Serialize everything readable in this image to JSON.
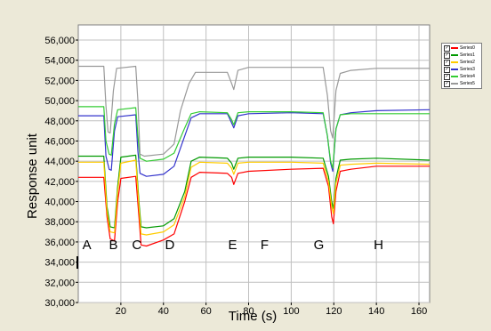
{
  "chart_data": {
    "type": "line",
    "xlabel": "Time (s)",
    "ylabel": "Response unit",
    "xlim": [
      0,
      165
    ],
    "ylim": [
      30000,
      57500
    ],
    "x_ticks": [
      20,
      40,
      60,
      80,
      100,
      120,
      140,
      160
    ],
    "y_ticks": [
      30000,
      32000,
      34000,
      36000,
      38000,
      40000,
      42000,
      44000,
      46000,
      48000,
      50000,
      52000,
      54000,
      56000
    ],
    "x_tick_labels": [
      "20",
      "40",
      "60",
      "80",
      "100",
      "120",
      "140",
      "160"
    ],
    "y_tick_labels": [
      "30,000",
      "32,000",
      "34,000",
      "36,000",
      "38,000",
      "40,000",
      "42,000",
      "44,000",
      "46,000",
      "48,000",
      "50,000",
      "52,000",
      "54,000",
      "56,000"
    ],
    "grid": true,
    "legend_position": "right",
    "phase_labels": [
      {
        "text": "A",
        "x": 4
      },
      {
        "text": "B",
        "x": 16.5
      },
      {
        "text": "C",
        "x": 27.5
      },
      {
        "text": "D",
        "x": 43
      },
      {
        "text": "E",
        "x": 72.5
      },
      {
        "text": "F",
        "x": 87.5
      },
      {
        "text": "G",
        "x": 113
      },
      {
        "text": "H",
        "x": 141
      }
    ],
    "phase_label_y": 35300,
    "series": [
      {
        "name": "Series0",
        "color": "#ff0000",
        "x": [
          0,
          12,
          13.5,
          15,
          17,
          18.5,
          20,
          27,
          28.5,
          29.5,
          32,
          40,
          45,
          50,
          53,
          57,
          70,
          72,
          73,
          75,
          80,
          100,
          115,
          117.5,
          119,
          119.8,
          121,
          123,
          128,
          140,
          165
        ],
        "y": [
          42400,
          42400,
          38500,
          36300,
          36100,
          40000,
          42300,
          42500,
          38500,
          35700,
          35600,
          36200,
          36800,
          40000,
          42400,
          42900,
          42800,
          42400,
          41700,
          42800,
          43000,
          43200,
          43300,
          41500,
          38500,
          37800,
          41000,
          43000,
          43200,
          43500,
          43500
        ]
      },
      {
        "name": "Series1",
        "color": "#009900",
        "x": [
          0,
          12,
          13.5,
          15,
          17,
          18.5,
          20,
          27,
          28.5,
          29.5,
          32,
          40,
          45,
          50,
          53,
          57,
          70,
          72,
          73,
          75,
          80,
          100,
          115,
          117.5,
          119,
          119.8,
          121,
          123,
          128,
          140,
          165
        ],
        "y": [
          44500,
          44500,
          39500,
          37500,
          37400,
          41500,
          44400,
          44600,
          40000,
          37500,
          37400,
          37600,
          38300,
          41000,
          44000,
          44400,
          44300,
          43800,
          43200,
          44300,
          44400,
          44400,
          44300,
          42500,
          40000,
          39300,
          42300,
          44100,
          44200,
          44300,
          44100
        ]
      },
      {
        "name": "Series2",
        "color": "#ffcc00",
        "x": [
          0,
          12,
          13.5,
          15,
          17,
          18.5,
          20,
          27,
          28.5,
          29.5,
          32,
          40,
          45,
          50,
          53,
          57,
          70,
          72,
          73,
          75,
          80,
          100,
          115,
          117.5,
          119,
          119.8,
          121,
          123,
          128,
          140,
          165
        ],
        "y": [
          43900,
          43900,
          39000,
          37000,
          36900,
          41000,
          43800,
          44100,
          39500,
          36800,
          36700,
          37000,
          37700,
          40500,
          43400,
          43900,
          43800,
          43300,
          42700,
          43800,
          43900,
          43900,
          43800,
          42000,
          39500,
          38800,
          41800,
          43600,
          43700,
          43800,
          43700
        ]
      },
      {
        "name": "Series3",
        "color": "#3333cc",
        "x": [
          0,
          12,
          13,
          14.5,
          15.5,
          17,
          18.5,
          27,
          28,
          29,
          32,
          40,
          45,
          50,
          53,
          57,
          70,
          72,
          73,
          75,
          80,
          100,
          115,
          117,
          118.5,
          119.5,
          121,
          123,
          128,
          140,
          165
        ],
        "y": [
          48500,
          48500,
          44500,
          43200,
          43100,
          47000,
          48400,
          48600,
          45000,
          42800,
          42500,
          42700,
          43500,
          46500,
          48300,
          48700,
          48700,
          47800,
          47300,
          48500,
          48700,
          48800,
          48700,
          46500,
          43800,
          43000,
          47200,
          48600,
          48800,
          49000,
          49100
        ]
      },
      {
        "name": "Series4",
        "color": "#33cc33",
        "x": [
          0,
          12,
          13,
          14.5,
          15.5,
          17,
          18.5,
          27,
          28,
          29,
          32,
          40,
          45,
          50,
          53,
          57,
          70,
          72,
          73,
          75,
          80,
          100,
          115,
          117,
          118.5,
          119.5,
          121,
          123,
          128,
          140,
          165
        ],
        "y": [
          49400,
          49400,
          46000,
          44700,
          44600,
          47700,
          49100,
          49300,
          46500,
          44300,
          44000,
          44200,
          44800,
          47300,
          48700,
          48900,
          48800,
          48100,
          47600,
          48800,
          48900,
          48900,
          48800,
          46500,
          44000,
          43300,
          47200,
          48600,
          48700,
          48700,
          48700
        ]
      },
      {
        "name": "Series5",
        "color": "#999999",
        "x": [
          0,
          12,
          13,
          14,
          15,
          16.5,
          18,
          27,
          28,
          29,
          31,
          40,
          45,
          48,
          52,
          55,
          70,
          72,
          73,
          75,
          80,
          100,
          115,
          117,
          118.5,
          119.5,
          121,
          123,
          128,
          140,
          165
        ],
        "y": [
          53400,
          53400,
          49500,
          46900,
          46800,
          51000,
          53200,
          53400,
          50000,
          44700,
          44500,
          44700,
          45700,
          49000,
          51700,
          52800,
          52800,
          51700,
          51100,
          53000,
          53300,
          53300,
          53300,
          50500,
          47000,
          46300,
          51000,
          52700,
          53000,
          53200,
          53200
        ]
      }
    ]
  }
}
